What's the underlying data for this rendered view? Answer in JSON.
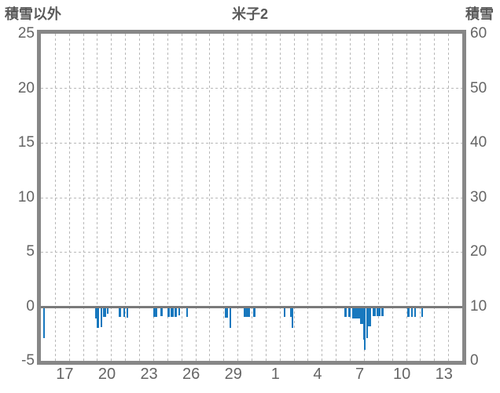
{
  "header": {
    "left_axis_title": "積雪以外",
    "chart_title": "米子2",
    "right_axis_title": "積雪"
  },
  "colors": {
    "bar": "#1878be",
    "frame": "#878787",
    "zero_line": "#7a7a7a",
    "grid": "#b8b8b8",
    "tick_text": "#646464",
    "title_text": "#595959"
  },
  "chart_data": {
    "type": "bar",
    "title": "米子2",
    "left_axis": {
      "label": "積雪以外",
      "ticks": [
        "25",
        "20",
        "15",
        "10",
        "5",
        "0",
        "-5"
      ],
      "min": -5,
      "max": 25
    },
    "right_axis": {
      "label": "積雪",
      "ticks": [
        "60",
        "50",
        "40",
        "30",
        "20",
        "10",
        "0"
      ],
      "min": 0,
      "max": 60
    },
    "x_axis": {
      "labels": [
        "17",
        "20",
        "23",
        "26",
        "29",
        "1",
        "4",
        "7",
        "10",
        "13"
      ],
      "label_positions_days": [
        1.7,
        4.7,
        7.7,
        10.7,
        13.7,
        16.7,
        19.7,
        22.7,
        25.7,
        28.7
      ],
      "domain_days": 30,
      "gridline_interval_days": 1
    },
    "zero_at_left_axis_value": 0,
    "bars": [
      {
        "day": 0.17,
        "w": 0.11,
        "value": -2.9
      },
      {
        "day": 3.84,
        "w": 0.14,
        "value": -1.1
      },
      {
        "day": 3.97,
        "w": 0.16,
        "value": -2.0
      },
      {
        "day": 4.27,
        "w": 0.12,
        "value": -1.9
      },
      {
        "day": 4.44,
        "w": 0.22,
        "value": -0.95
      },
      {
        "day": 4.72,
        "w": 0.1,
        "value": -0.7
      },
      {
        "day": 5.52,
        "w": 0.18,
        "value": -0.95
      },
      {
        "day": 5.86,
        "w": 0.13,
        "value": -0.95
      },
      {
        "day": 6.08,
        "w": 0.13,
        "value": -1.05
      },
      {
        "day": 8.0,
        "w": 0.28,
        "value": -1.0
      },
      {
        "day": 8.51,
        "w": 0.15,
        "value": -0.9
      },
      {
        "day": 9.03,
        "w": 0.15,
        "value": -1.0
      },
      {
        "day": 9.25,
        "w": 0.22,
        "value": -1.0
      },
      {
        "day": 9.53,
        "w": 0.15,
        "value": -1.0
      },
      {
        "day": 9.81,
        "w": 0.1,
        "value": -0.8
      },
      {
        "day": 10.33,
        "w": 0.15,
        "value": -1.0
      },
      {
        "day": 13.08,
        "w": 0.24,
        "value": -1.05
      },
      {
        "day": 13.45,
        "w": 0.11,
        "value": -2.0
      },
      {
        "day": 14.44,
        "w": 0.46,
        "value": -1.0
      },
      {
        "day": 15.12,
        "w": 0.18,
        "value": -0.95
      },
      {
        "day": 17.29,
        "w": 0.13,
        "value": -1.0
      },
      {
        "day": 17.75,
        "w": 0.1,
        "value": -1.0
      },
      {
        "day": 17.87,
        "w": 0.11,
        "value": -2.0
      },
      {
        "day": 21.58,
        "w": 0.18,
        "value": -1.0
      },
      {
        "day": 21.86,
        "w": 0.18,
        "value": -1.0
      },
      {
        "day": 22.14,
        "w": 0.56,
        "value": -1.1
      },
      {
        "day": 22.73,
        "w": 0.22,
        "value": -1.6
      },
      {
        "day": 22.96,
        "w": 0.15,
        "value": -3.05
      },
      {
        "day": 23.01,
        "w": 0.08,
        "value": -4.0
      },
      {
        "day": 23.17,
        "w": 0.13,
        "value": -2.9
      },
      {
        "day": 23.3,
        "w": 0.22,
        "value": -1.85
      },
      {
        "day": 23.62,
        "w": 0.1,
        "value": -0.9
      },
      {
        "day": 23.75,
        "w": 0.11,
        "value": -0.9
      },
      {
        "day": 23.9,
        "w": 0.07,
        "value": -0.9
      },
      {
        "day": 24.03,
        "w": 0.15,
        "value": -0.9
      },
      {
        "day": 24.23,
        "w": 0.18,
        "value": -0.9
      },
      {
        "day": 26.1,
        "w": 0.13,
        "value": -1.0
      },
      {
        "day": 26.34,
        "w": 0.13,
        "value": -1.0
      },
      {
        "day": 26.6,
        "w": 0.11,
        "value": -1.0
      },
      {
        "day": 27.07,
        "w": 0.11,
        "value": -1.0
      }
    ]
  }
}
